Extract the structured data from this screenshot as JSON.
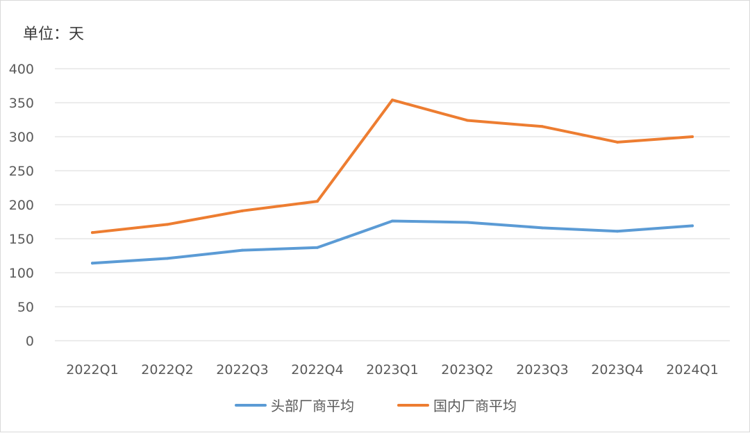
{
  "unit_label": "单位：天",
  "colors": {
    "series_top": "#5b9bd5",
    "series_domestic": "#ed7d31",
    "grid": "#d9d9d9",
    "text": "#595959"
  },
  "chart_data": {
    "type": "line",
    "title": "",
    "xlabel": "",
    "ylabel": "单位：天",
    "categories": [
      "2022Q1",
      "2022Q2",
      "2022Q3",
      "2022Q4",
      "2023Q1",
      "2023Q2",
      "2023Q3",
      "2023Q4",
      "2024Q1"
    ],
    "ylim": [
      0,
      400
    ],
    "yticks": [
      0,
      50,
      100,
      150,
      200,
      250,
      300,
      350,
      400
    ],
    "grid": true,
    "legend_position": "bottom",
    "series": [
      {
        "name": "头部厂商平均",
        "color": "#5b9bd5",
        "values": [
          114,
          121,
          133,
          137,
          176,
          174,
          166,
          161,
          169
        ]
      },
      {
        "name": "国内厂商平均",
        "color": "#ed7d31",
        "values": [
          159,
          171,
          191,
          205,
          354,
          324,
          315,
          292,
          300
        ]
      }
    ]
  }
}
